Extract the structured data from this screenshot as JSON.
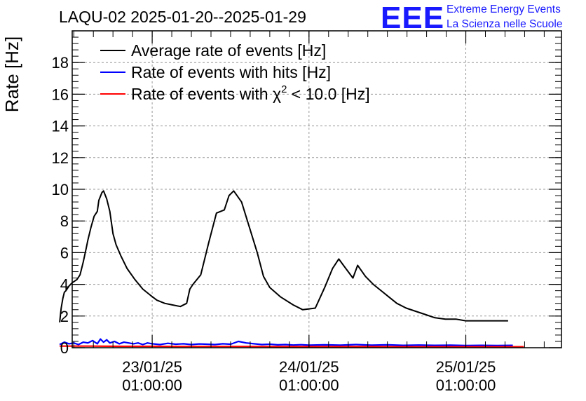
{
  "chart_data": {
    "type": "line",
    "title": "LAQU-02 2025-01-20--2025-01-29",
    "ylabel": "Rate [Hz]",
    "xlabel": "",
    "ylim": [
      0,
      20
    ],
    "xlim": [
      -0.51,
      2.61
    ],
    "yticks": [
      0,
      2,
      4,
      6,
      8,
      10,
      12,
      14,
      16,
      18
    ],
    "xticks": [
      {
        "x": 0,
        "date": "23/01/25",
        "time": "01:00:00"
      },
      {
        "x": 1,
        "date": "24/01/25",
        "time": "01:00:00"
      },
      {
        "x": 2,
        "date": "25/01/25",
        "time": "01:00:00"
      }
    ],
    "x_unit": "days from 23/01/25 01:00:00",
    "grid": true,
    "legend_position": "top-left",
    "series": [
      {
        "name": "Average rate of events [Hz]",
        "color": "#000000",
        "x": [
          -0.59,
          -0.58,
          -0.57,
          -0.56,
          -0.55,
          -0.53,
          -0.51,
          -0.48,
          -0.46,
          -0.44,
          -0.42,
          -0.41,
          -0.39,
          -0.37,
          -0.35,
          -0.34,
          -0.32,
          -0.31,
          -0.29,
          -0.27,
          -0.25,
          -0.23,
          -0.2,
          -0.16,
          -0.11,
          -0.06,
          -0.01,
          0.03,
          0.08,
          0.13,
          0.18,
          0.22,
          0.24,
          0.26,
          0.31,
          0.36,
          0.41,
          0.46,
          0.49,
          0.52,
          0.57,
          0.62,
          0.67,
          0.71,
          0.75,
          0.82,
          0.9,
          0.96,
          1.04,
          1.1,
          1.15,
          1.19,
          1.22,
          1.25,
          1.28,
          1.31,
          1.36,
          1.41,
          1.46,
          1.51,
          1.56,
          1.62,
          1.68,
          1.74,
          1.8,
          1.87,
          1.94,
          2.0,
          2.06,
          2.13,
          2.2,
          2.27
        ],
        "y": [
          1.6,
          2.5,
          3.1,
          3.5,
          3.6,
          3.9,
          4.1,
          4.3,
          4.6,
          5.4,
          6.3,
          6.8,
          7.6,
          8.3,
          8.6,
          9.3,
          9.8,
          9.9,
          9.4,
          8.6,
          7.2,
          6.5,
          5.8,
          5.0,
          4.3,
          3.7,
          3.3,
          3.0,
          2.8,
          2.7,
          2.6,
          2.8,
          3.7,
          4.0,
          4.6,
          6.6,
          8.5,
          8.7,
          9.6,
          9.9,
          9.2,
          7.6,
          6.0,
          4.5,
          3.8,
          3.2,
          2.7,
          2.4,
          2.5,
          3.8,
          5.0,
          5.6,
          5.2,
          4.8,
          4.4,
          5.2,
          4.5,
          4.0,
          3.6,
          3.2,
          2.8,
          2.5,
          2.3,
          2.1,
          1.9,
          1.8,
          1.8,
          1.7,
          1.7,
          1.7,
          1.7,
          1.7
        ]
      },
      {
        "name": "Rate of events with hits [Hz]",
        "color": "#0000ff",
        "x": [
          -0.59,
          -0.56,
          -0.53,
          -0.5,
          -0.47,
          -0.44,
          -0.41,
          -0.38,
          -0.35,
          -0.33,
          -0.31,
          -0.29,
          -0.27,
          -0.24,
          -0.21,
          -0.18,
          -0.15,
          -0.12,
          -0.09,
          -0.06,
          -0.03,
          0.0,
          0.05,
          0.1,
          0.15,
          0.2,
          0.25,
          0.3,
          0.35,
          0.4,
          0.45,
          0.5,
          0.55,
          0.6,
          0.65,
          0.7,
          0.75,
          0.8,
          0.85,
          0.9,
          0.95,
          1.0,
          1.1,
          1.2,
          1.3,
          1.4,
          1.5,
          1.6,
          1.7,
          1.8,
          1.9,
          2.0,
          2.1,
          2.2,
          2.3
        ],
        "y": [
          0.2,
          0.35,
          0.25,
          0.3,
          0.2,
          0.35,
          0.3,
          0.45,
          0.25,
          0.55,
          0.35,
          0.5,
          0.3,
          0.4,
          0.25,
          0.35,
          0.3,
          0.25,
          0.3,
          0.2,
          0.3,
          0.25,
          0.2,
          0.28,
          0.22,
          0.25,
          0.2,
          0.24,
          0.22,
          0.2,
          0.25,
          0.22,
          0.4,
          0.3,
          0.25,
          0.2,
          0.22,
          0.18,
          0.2,
          0.17,
          0.19,
          0.16,
          0.18,
          0.16,
          0.2,
          0.16,
          0.18,
          0.15,
          0.17,
          0.15,
          0.16,
          0.14,
          0.15,
          0.14,
          0.15
        ]
      },
      {
        "name": "Rate of events with χ² < 10.0 [Hz]",
        "legend_label_main": "Rate of events with χ",
        "legend_label_sup": "2",
        "legend_label_tail": " < 10.0 [Hz]",
        "color": "#ff0000",
        "x": [
          -0.59,
          -0.4,
          -0.2,
          0.0,
          0.2,
          0.4,
          0.6,
          0.8,
          1.0,
          1.2,
          1.4,
          1.6,
          1.8,
          2.0,
          2.2,
          2.37
        ],
        "y": [
          0.1,
          0.1,
          0.09,
          0.09,
          0.08,
          0.08,
          0.08,
          0.07,
          0.07,
          0.07,
          0.07,
          0.06,
          0.06,
          0.06,
          0.06,
          0.06
        ]
      }
    ]
  },
  "logo": {
    "mark": "EEE",
    "line1": "Extreme Energy Events",
    "line2": "La Scienza nelle Scuole",
    "color": "#1a1aff"
  }
}
